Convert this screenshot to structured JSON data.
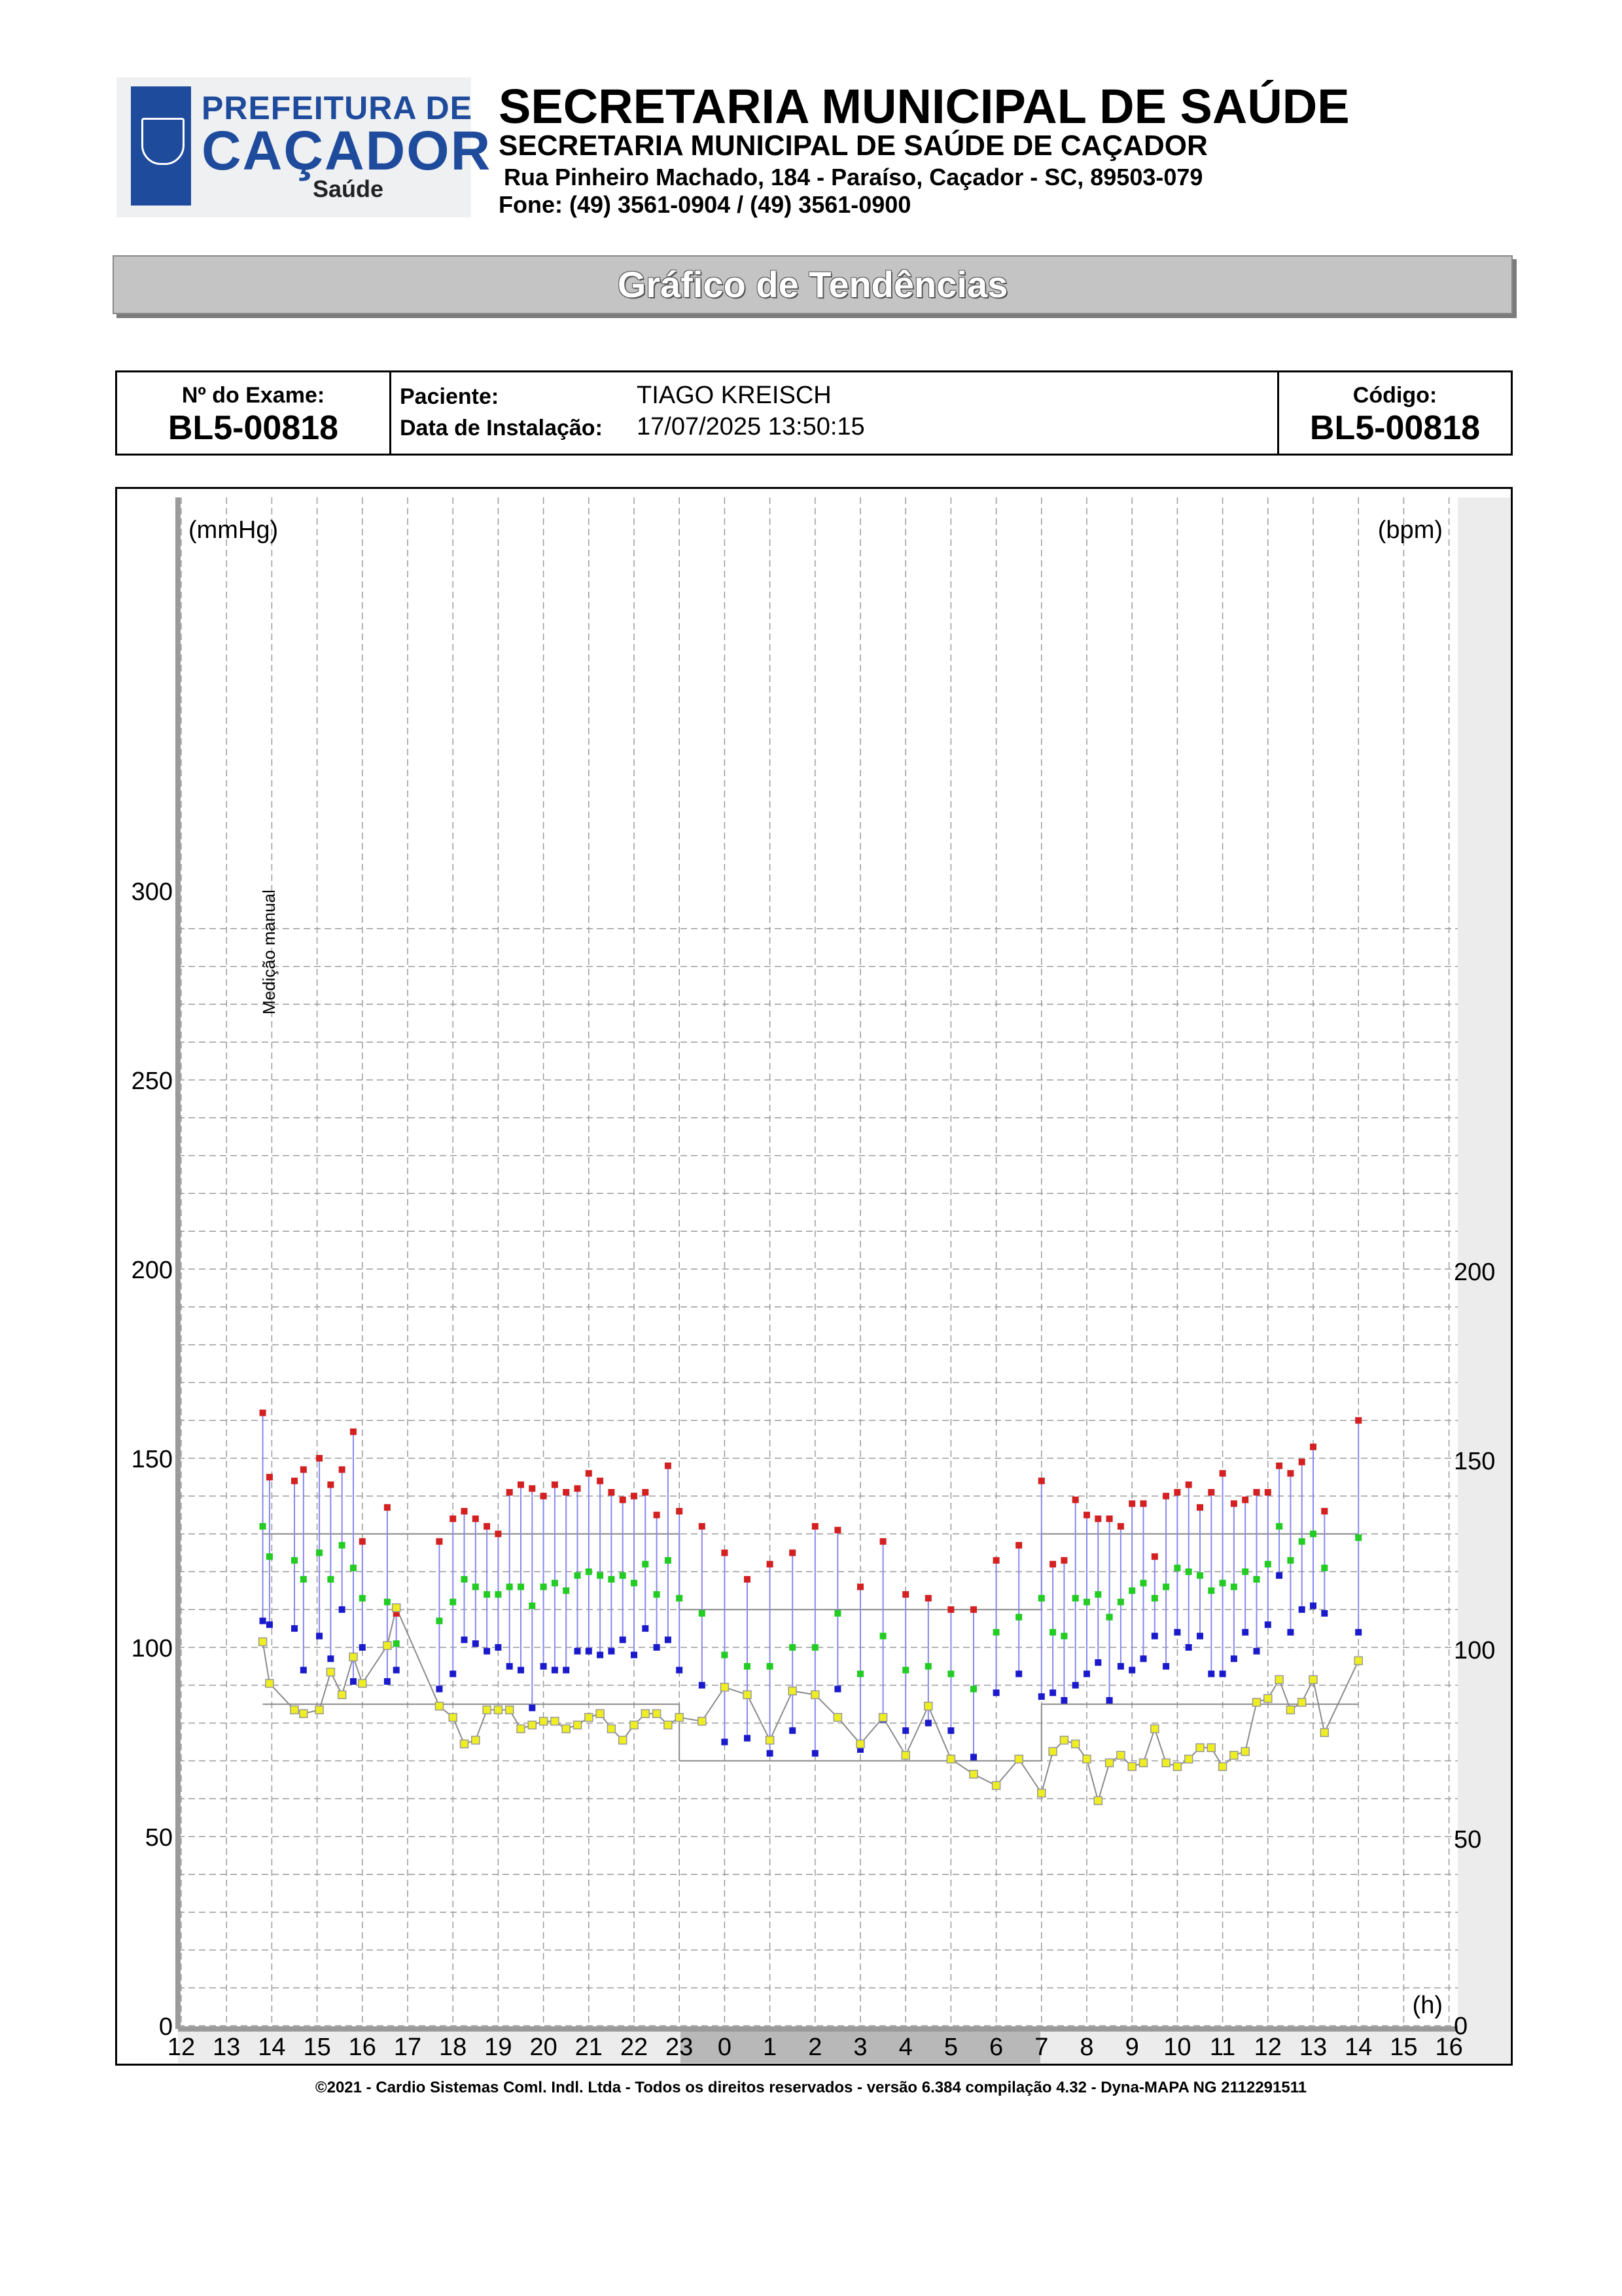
{
  "header": {
    "logo_line1": "PREFEITURA DE",
    "logo_line2": "CAÇADOR",
    "logo_line3": "Saúde",
    "title": "SECRETARIA MUNICIPAL DE SAÚDE",
    "subtitle": "SECRETARIA MUNICIPAL DE SAÚDE DE CAÇADOR",
    "address": "Rua Pinheiro Machado, 184 - Paraíso, Caçador - SC, 89503-079",
    "phone": "Fone: (49) 3561-0904  / (49) 3561-0900"
  },
  "section_title": "Gráfico de Tendências",
  "info": {
    "exam_label": "Nº do Exame:",
    "exam_value": "BL5-00818",
    "patient_label": "Paciente:",
    "patient_value": "TIAGO KREISCH",
    "install_label": "Data de Instalação:",
    "install_value": "17/07/2025 13:50:15",
    "code_label": "Código:",
    "code_value": "BL5-00818"
  },
  "chart_data": {
    "type": "scatter",
    "left_unit": "(mmHg)",
    "right_unit": "(bpm)",
    "x_unit": "(h)",
    "annotation": "Medição manual",
    "left_ticks": [
      "300",
      "250",
      "200",
      "150",
      "100",
      "50",
      "0"
    ],
    "right_ticks": [
      "200",
      "150",
      "100",
      "50",
      "0"
    ],
    "x_ticks": [
      "12",
      "13",
      "14",
      "15",
      "16",
      "17",
      "18",
      "19",
      "20",
      "21",
      "22",
      "23",
      "0",
      "1",
      "2",
      "3",
      "4",
      "5",
      "6",
      "7",
      "8",
      "9",
      "10",
      "11",
      "12",
      "13",
      "14",
      "15",
      "16"
    ],
    "sleep_period": [
      "23",
      "7"
    ],
    "ylim_mmhg": [
      0,
      300
    ],
    "ylim_bpm": [
      0,
      200
    ],
    "grid": true,
    "limits": {
      "awake": {
        "systolic": 130,
        "diastolic": 85
      },
      "sleep": {
        "systolic": 110,
        "diastolic": 70
      }
    },
    "series_colors": {
      "systolic": "#d42020",
      "mean": "#22cc22",
      "diastolic": "#1a1acc",
      "heart_rate": "#eeee22"
    },
    "measurements": [
      {
        "t": 13.8,
        "sys": 162,
        "mean": 132,
        "dia": 107,
        "hr": 102
      },
      {
        "t": 13.95,
        "sys": 145,
        "mean": 124,
        "dia": 106,
        "hr": 91
      },
      {
        "t": 14.5,
        "sys": 144,
        "mean": 123,
        "dia": 105,
        "hr": 84
      },
      {
        "t": 14.7,
        "sys": 147,
        "mean": 118,
        "dia": 94,
        "hr": 83
      },
      {
        "t": 15.05,
        "sys": 150,
        "mean": 125,
        "dia": 103,
        "hr": 84
      },
      {
        "t": 15.3,
        "sys": 143,
        "mean": 118,
        "dia": 97,
        "hr": 94
      },
      {
        "t": 15.55,
        "sys": 147,
        "mean": 127,
        "dia": 110,
        "hr": 88
      },
      {
        "t": 15.8,
        "sys": 157,
        "mean": 121,
        "dia": 91,
        "hr": 98
      },
      {
        "t": 16.0,
        "sys": 128,
        "mean": 113,
        "dia": 100,
        "hr": 91
      },
      {
        "t": 16.55,
        "sys": 137,
        "mean": 112,
        "dia": 91,
        "hr": 101
      },
      {
        "t": 16.75,
        "sys": 109,
        "mean": 101,
        "dia": 94,
        "hr": 111
      },
      {
        "t": 17.7,
        "sys": 128,
        "mean": 107,
        "dia": 89,
        "hr": 85
      },
      {
        "t": 18.0,
        "sys": 134,
        "mean": 112,
        "dia": 93,
        "hr": 82
      },
      {
        "t": 18.25,
        "sys": 136,
        "mean": 118,
        "dia": 102,
        "hr": 75
      },
      {
        "t": 18.5,
        "sys": 134,
        "mean": 116,
        "dia": 101,
        "hr": 76
      },
      {
        "t": 18.75,
        "sys": 132,
        "mean": 114,
        "dia": 99,
        "hr": 84
      },
      {
        "t": 19.0,
        "sys": 130,
        "mean": 114,
        "dia": 100,
        "hr": 84
      },
      {
        "t": 19.25,
        "sys": 141,
        "mean": 116,
        "dia": 95,
        "hr": 84
      },
      {
        "t": 19.5,
        "sys": 143,
        "mean": 116,
        "dia": 94,
        "hr": 79
      },
      {
        "t": 19.75,
        "sys": 142,
        "mean": 111,
        "dia": 84,
        "hr": 80
      },
      {
        "t": 20.0,
        "sys": 140,
        "mean": 116,
        "dia": 95,
        "hr": 81
      },
      {
        "t": 20.25,
        "sys": 143,
        "mean": 117,
        "dia": 94,
        "hr": 81
      },
      {
        "t": 20.5,
        "sys": 141,
        "mean": 115,
        "dia": 94,
        "hr": 79
      },
      {
        "t": 20.75,
        "sys": 142,
        "mean": 119,
        "dia": 99,
        "hr": 80
      },
      {
        "t": 21.0,
        "sys": 146,
        "mean": 120,
        "dia": 99,
        "hr": 82
      },
      {
        "t": 21.25,
        "sys": 144,
        "mean": 119,
        "dia": 98,
        "hr": 83
      },
      {
        "t": 21.5,
        "sys": 141,
        "mean": 118,
        "dia": 99,
        "hr": 79
      },
      {
        "t": 21.75,
        "sys": 139,
        "mean": 119,
        "dia": 102,
        "hr": 76
      },
      {
        "t": 22.0,
        "sys": 140,
        "mean": 117,
        "dia": 98,
        "hr": 80
      },
      {
        "t": 22.25,
        "sys": 141,
        "mean": 122,
        "dia": 105,
        "hr": 83
      },
      {
        "t": 22.5,
        "sys": 135,
        "mean": 114,
        "dia": 100,
        "hr": 83
      },
      {
        "t": 22.75,
        "sys": 148,
        "mean": 123,
        "dia": 102,
        "hr": 80
      },
      {
        "t": 23.0,
        "sys": 136,
        "mean": 113,
        "dia": 94,
        "hr": 82
      },
      {
        "t": 23.5,
        "sys": 132,
        "mean": 109,
        "dia": 90,
        "hr": 81
      },
      {
        "t": 24.0,
        "sys": 125,
        "mean": 98,
        "dia": 75,
        "hr": 90
      },
      {
        "t": 24.5,
        "sys": 118,
        "mean": 95,
        "dia": 76,
        "hr": 88
      },
      {
        "t": 25.0,
        "sys": 122,
        "mean": 95,
        "dia": 72,
        "hr": 76
      },
      {
        "t": 25.5,
        "sys": 125,
        "mean": 100,
        "dia": 78,
        "hr": 89
      },
      {
        "t": 26.0,
        "sys": 132,
        "mean": 100,
        "dia": 72,
        "hr": 88
      },
      {
        "t": 26.5,
        "sys": 131,
        "mean": 109,
        "dia": 89,
        "hr": 82
      },
      {
        "t": 27.0,
        "sys": 116,
        "mean": 93,
        "dia": 73,
        "hr": 75
      },
      {
        "t": 27.5,
        "sys": 128,
        "mean": 103,
        "dia": 81,
        "hr": 82
      },
      {
        "t": 28.0,
        "sys": 114,
        "mean": 94,
        "dia": 78,
        "hr": 72
      },
      {
        "t": 28.5,
        "sys": 113,
        "mean": 95,
        "dia": 80,
        "hr": 85
      },
      {
        "t": 29.0,
        "sys": 110,
        "mean": 93,
        "dia": 78,
        "hr": 71
      },
      {
        "t": 29.5,
        "sys": 110,
        "mean": 89,
        "dia": 71,
        "hr": 67
      },
      {
        "t": 30.0,
        "sys": 123,
        "mean": 104,
        "dia": 88,
        "hr": 64
      },
      {
        "t": 30.5,
        "sys": 127,
        "mean": 108,
        "dia": 93,
        "hr": 71
      },
      {
        "t": 31.0,
        "sys": 144,
        "mean": 113,
        "dia": 87,
        "hr": 62
      },
      {
        "t": 31.25,
        "sys": 122,
        "mean": 104,
        "dia": 88,
        "hr": 73
      },
      {
        "t": 31.5,
        "sys": 123,
        "mean": 103,
        "dia": 86,
        "hr": 76
      },
      {
        "t": 31.75,
        "sys": 139,
        "mean": 113,
        "dia": 90,
        "hr": 75
      },
      {
        "t": 32.0,
        "sys": 135,
        "mean": 112,
        "dia": 93,
        "hr": 71
      },
      {
        "t": 32.25,
        "sys": 134,
        "mean": 114,
        "dia": 96,
        "hr": 60
      },
      {
        "t": 32.5,
        "sys": 134,
        "mean": 108,
        "dia": 86,
        "hr": 70
      },
      {
        "t": 32.75,
        "sys": 132,
        "mean": 112,
        "dia": 95,
        "hr": 72
      },
      {
        "t": 33.0,
        "sys": 138,
        "mean": 115,
        "dia": 94,
        "hr": 69
      },
      {
        "t": 33.25,
        "sys": 138,
        "mean": 117,
        "dia": 97,
        "hr": 70
      },
      {
        "t": 33.5,
        "sys": 124,
        "mean": 113,
        "dia": 103,
        "hr": 79
      },
      {
        "t": 33.75,
        "sys": 140,
        "mean": 116,
        "dia": 95,
        "hr": 70
      },
      {
        "t": 34.0,
        "sys": 141,
        "mean": 121,
        "dia": 104,
        "hr": 69
      },
      {
        "t": 34.25,
        "sys": 143,
        "mean": 120,
        "dia": 100,
        "hr": 71
      },
      {
        "t": 34.5,
        "sys": 137,
        "mean": 119,
        "dia": 103,
        "hr": 74
      },
      {
        "t": 34.75,
        "sys": 141,
        "mean": 115,
        "dia": 93,
        "hr": 74
      },
      {
        "t": 35.0,
        "sys": 146,
        "mean": 117,
        "dia": 93,
        "hr": 69
      },
      {
        "t": 35.25,
        "sys": 138,
        "mean": 116,
        "dia": 97,
        "hr": 72
      },
      {
        "t": 35.5,
        "sys": 139,
        "mean": 120,
        "dia": 104,
        "hr": 73
      },
      {
        "t": 35.75,
        "sys": 141,
        "mean": 118,
        "dia": 99,
        "hr": 86
      },
      {
        "t": 36.0,
        "sys": 141,
        "mean": 122,
        "dia": 106,
        "hr": 87
      },
      {
        "t": 36.25,
        "sys": 148,
        "mean": 132,
        "dia": 119,
        "hr": 92
      },
      {
        "t": 36.5,
        "sys": 146,
        "mean": 123,
        "dia": 104,
        "hr": 84
      },
      {
        "t": 36.75,
        "sys": 149,
        "mean": 128,
        "dia": 110,
        "hr": 86
      },
      {
        "t": 37.0,
        "sys": 153,
        "mean": 130,
        "dia": 111,
        "hr": 92
      },
      {
        "t": 37.25,
        "sys": 136,
        "mean": 121,
        "dia": 109,
        "hr": 78
      },
      {
        "t": 38.0,
        "sys": 160,
        "mean": 129,
        "dia": 104,
        "hr": 97
      }
    ]
  },
  "footer": "©2021 - Cardio Sistemas Coml. Indl. Ltda - Todos os direitos reservados - versão 6.384 compilação 4.32 - Dyna-MAPA NG 2112291511"
}
